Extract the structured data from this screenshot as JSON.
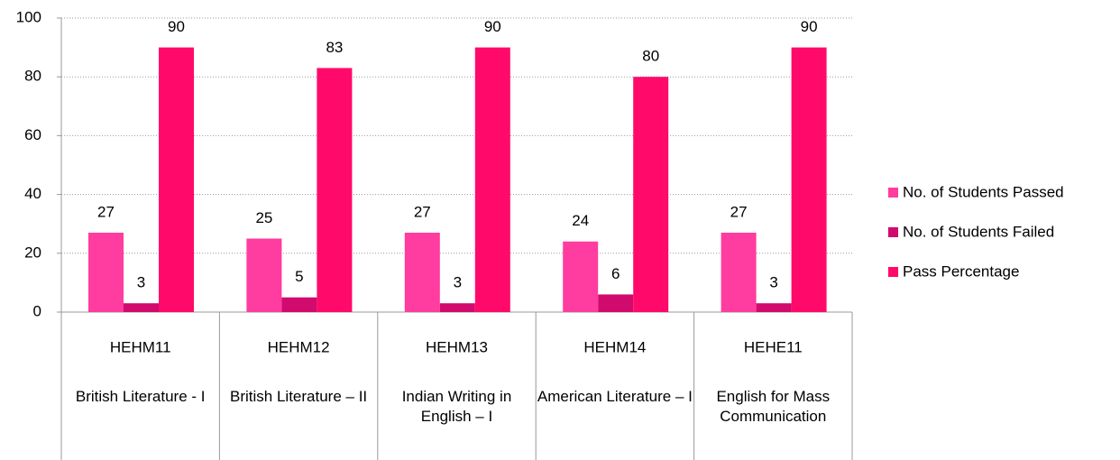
{
  "chart_data": {
    "type": "bar",
    "categories": [
      "HEHM11",
      "HEHM12",
      "HEHM13",
      "HEHM14",
      "HEHE11"
    ],
    "subcategories": [
      "British Literature - I",
      "British Literature – II",
      "Indian Writing in English – I",
      "American Literature – I",
      "English for Mass Communication"
    ],
    "series": [
      {
        "name": "No. of Students Passed",
        "color": "#ff3c9f",
        "values": [
          27,
          25,
          27,
          24,
          27
        ]
      },
      {
        "name": "No. of Students Failed",
        "color": "#d10a6e",
        "values": [
          3,
          5,
          3,
          6,
          3
        ]
      },
      {
        "name": "Pass Percentage",
        "color": "#ff0a6a",
        "values": [
          90,
          83,
          90,
          80,
          90
        ]
      }
    ],
    "ylim": [
      0,
      100
    ],
    "yticks": [
      0,
      20,
      40,
      60,
      80,
      100
    ],
    "grid": true,
    "legend": "right",
    "data_labels": true
  }
}
